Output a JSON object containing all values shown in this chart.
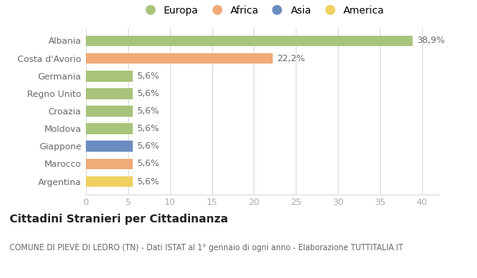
{
  "categories": [
    "Argentina",
    "Marocco",
    "Giappone",
    "Moldova",
    "Croazia",
    "Regno Unito",
    "Germania",
    "Costa d'Avorio",
    "Albania"
  ],
  "values": [
    5.6,
    5.6,
    5.6,
    5.6,
    5.6,
    5.6,
    5.6,
    22.2,
    38.9
  ],
  "bar_colors": [
    "#f0d060",
    "#f0aa78",
    "#6b8cbf",
    "#a8c47a",
    "#a8c47a",
    "#a8c47a",
    "#a8c47a",
    "#f0aa78",
    "#a8c47a"
  ],
  "labels": [
    "5,6%",
    "5,6%",
    "5,6%",
    "5,6%",
    "5,6%",
    "5,6%",
    "5,6%",
    "22,2%",
    "38,9%"
  ],
  "xlim": [
    0,
    42
  ],
  "xticks": [
    0,
    5,
    10,
    15,
    20,
    25,
    30,
    35,
    40
  ],
  "title": "Cittadini Stranieri per Cittadinanza",
  "subtitle": "COMUNE DI PIEVE DI LEDRO (TN) - Dati ISTAT al 1° gennaio di ogni anno - Elaborazione TUTTITALIA.IT",
  "legend_labels": [
    "Europa",
    "Africa",
    "Asia",
    "America"
  ],
  "legend_colors": [
    "#a8c47a",
    "#f0aa78",
    "#6b8cbf",
    "#f0d060"
  ],
  "background_color": "#ffffff",
  "grid_color": "#dddddd",
  "label_color": "#666666",
  "tick_color": "#aaaaaa"
}
